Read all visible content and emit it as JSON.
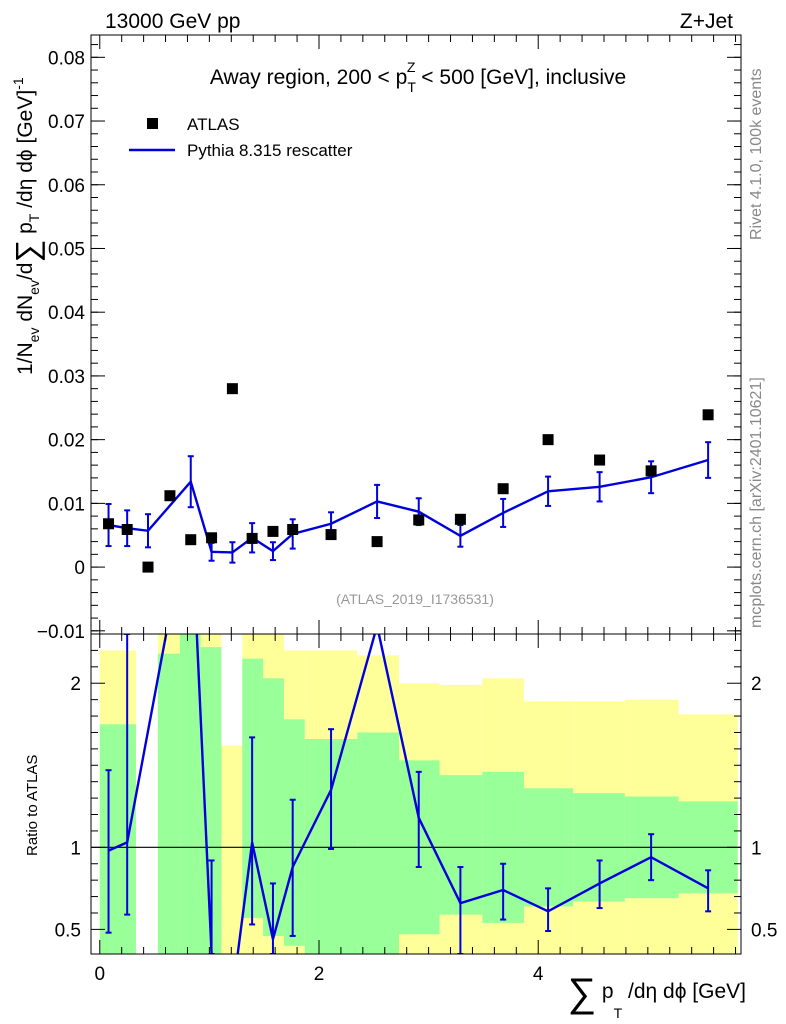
{
  "header": {
    "energy_label": "13000 GeV pp",
    "process_label": "Z+Jet",
    "side_label_top": "Rivet 4.1.0,  100k events",
    "side_label_bottom": "mcplots.cern.ch [arXiv:2401.10621]",
    "analysis_id": "(ATLAS_2019_I1736531)"
  },
  "colors": {
    "mc_line": "#0000dd",
    "data_marker": "#000000",
    "band_1sigma": "#99ff99",
    "band_2sigma": "#ffff99",
    "analysis_text": "#999999",
    "side_text": "#888888"
  },
  "chart_data": [
    {
      "type": "scatter",
      "title_pre": "Away region, 200 < p",
      "title_sub": "T",
      "title_sup": "Z",
      "title_post": " < 500 [GeV], inclusive",
      "ylabel": "1/N_ev dN_ev/d∑ p_T /dη dϕ [GeV]^-1",
      "xlim": [
        -0.08,
        5.85
      ],
      "ylim": [
        -0.0105,
        0.0835
      ],
      "yticks": [
        {
          "v": -0.01,
          "label": "−0.01"
        },
        {
          "v": 0,
          "label": "0"
        },
        {
          "v": 0.01,
          "label": "0.01"
        },
        {
          "v": 0.02,
          "label": "0.02"
        },
        {
          "v": 0.03,
          "label": "0.03"
        },
        {
          "v": 0.04,
          "label": "0.04"
        },
        {
          "v": 0.05,
          "label": "0.05"
        },
        {
          "v": 0.06,
          "label": "0.06"
        },
        {
          "v": 0.07,
          "label": "0.07"
        },
        {
          "v": 0.08,
          "label": "0.08"
        }
      ],
      "legend": {
        "data_label": "ATLAS",
        "mc_label": "Pythia 8.315 rescatter",
        "position": "top-left"
      },
      "atlas": {
        "x": [
          0.08,
          0.25,
          0.44,
          0.64,
          0.83,
          1.02,
          1.21,
          1.39,
          1.58,
          1.76,
          2.11,
          2.53,
          2.91,
          3.29,
          3.68,
          4.09,
          4.56,
          5.03,
          5.55
        ],
        "y": [
          0.0068,
          0.0059,
          0.0,
          0.0112,
          0.0043,
          0.0046,
          0.028,
          0.0045,
          0.0056,
          0.0059,
          0.0051,
          0.004,
          0.0074,
          0.0075,
          0.0123,
          0.02,
          0.0168,
          0.0151,
          0.0239
        ]
      },
      "pythia": {
        "x": [
          0.08,
          0.25,
          0.44,
          0.83,
          1.02,
          1.21,
          1.39,
          1.58,
          1.76,
          2.11,
          2.53,
          2.91,
          3.29,
          3.68,
          4.09,
          4.56,
          5.03,
          5.55
        ],
        "y": [
          0.0066,
          0.0061,
          0.0057,
          0.0134,
          0.0024,
          0.0023,
          0.0046,
          0.0025,
          0.0052,
          0.0068,
          0.0103,
          0.0087,
          0.0049,
          0.0085,
          0.0119,
          0.0126,
          0.0141,
          0.0168
        ],
        "yerr": [
          0.0033,
          0.0028,
          0.0026,
          0.004,
          0.0014,
          0.0016,
          0.0023,
          0.0014,
          0.0023,
          0.0018,
          0.0026,
          0.0021,
          0.0017,
          0.0022,
          0.0023,
          0.0023,
          0.0025,
          0.0028
        ]
      }
    },
    {
      "type": "line",
      "ylabel": "Ratio to ATLAS",
      "xlabel": "∑ p_T /dη dϕ [GeV]",
      "xlim": [
        -0.08,
        5.85
      ],
      "ylim": [
        0.35,
        2.3
      ],
      "yticks": [
        {
          "v": 0.5,
          "label": "0.5"
        },
        {
          "v": 1,
          "label": "1"
        },
        {
          "v": 2,
          "label": "2"
        }
      ],
      "xticks": [
        {
          "v": 0,
          "label": "0"
        },
        {
          "v": 2,
          "label": "2"
        },
        {
          "v": 4,
          "label": "4"
        }
      ],
      "bands": [
        {
          "x0": 0.0,
          "x1": 0.33,
          "g_lo": 0.35,
          "g_hi": 1.75,
          "y_lo": 0.35,
          "y_hi": 2.2
        },
        {
          "x0": 0.53,
          "x1": 0.73,
          "g_lo": 0.35,
          "g_hi": 2.18,
          "y_lo": 0.35,
          "y_hi": 2.3
        },
        {
          "x0": 0.73,
          "x1": 0.92,
          "g_lo": 0.35,
          "g_hi": 2.3,
          "y_lo": 0.35,
          "y_hi": 2.3
        },
        {
          "x0": 0.92,
          "x1": 1.11,
          "g_lo": 0.35,
          "g_hi": 2.22,
          "y_lo": 0.35,
          "y_hi": 2.3
        },
        {
          "x0": 1.11,
          "x1": 1.3,
          "g_lo": 0.35,
          "g_hi": 0.35,
          "y_lo": 0.35,
          "y_hi": 1.62
        },
        {
          "x0": 1.3,
          "x1": 1.49,
          "g_lo": 0.57,
          "g_hi": 2.15,
          "y_lo": 0.35,
          "y_hi": 2.3
        },
        {
          "x0": 1.49,
          "x1": 1.68,
          "g_lo": 0.46,
          "g_hi": 2.03,
          "y_lo": 0.35,
          "y_hi": 2.3
        },
        {
          "x0": 1.68,
          "x1": 1.87,
          "g_lo": 0.4,
          "g_hi": 1.78,
          "y_lo": 0.35,
          "y_hi": 2.2
        },
        {
          "x0": 1.87,
          "x1": 2.35,
          "g_lo": 0.35,
          "g_hi": 1.66,
          "y_lo": 0.35,
          "y_hi": 2.2
        },
        {
          "x0": 2.35,
          "x1": 2.73,
          "g_lo": 0.35,
          "g_hi": 1.7,
          "y_lo": 0.35,
          "y_hi": 2.17
        },
        {
          "x0": 2.73,
          "x1": 3.1,
          "g_lo": 0.47,
          "g_hi": 1.53,
          "y_lo": 0.35,
          "y_hi": 2.0
        },
        {
          "x0": 3.1,
          "x1": 3.49,
          "g_lo": 0.59,
          "g_hi": 1.44,
          "y_lo": 0.35,
          "y_hi": 1.99
        },
        {
          "x0": 3.49,
          "x1": 3.87,
          "g_lo": 0.54,
          "g_hi": 1.46,
          "y_lo": 0.35,
          "y_hi": 2.03
        },
        {
          "x0": 3.87,
          "x1": 4.32,
          "g_lo": 0.64,
          "g_hi": 1.36,
          "y_lo": 0.35,
          "y_hi": 1.89
        },
        {
          "x0": 4.32,
          "x1": 4.79,
          "g_lo": 0.67,
          "g_hi": 1.33,
          "y_lo": 0.35,
          "y_hi": 1.89
        },
        {
          "x0": 4.79,
          "x1": 5.28,
          "g_lo": 0.69,
          "g_hi": 1.31,
          "y_lo": 0.35,
          "y_hi": 1.9
        },
        {
          "x0": 5.28,
          "x1": 5.82,
          "g_lo": 0.72,
          "g_hi": 1.28,
          "y_lo": 0.35,
          "y_hi": 1.81
        }
      ],
      "ratio": {
        "x": [
          0.08,
          0.25,
          0.83,
          1.02,
          1.21,
          1.39,
          1.58,
          1.76,
          2.11,
          2.53,
          2.91,
          3.29,
          3.68,
          4.09,
          4.56,
          5.03,
          5.55
        ],
        "y": [
          0.98,
          1.03,
          3.1,
          0.35,
          0.1,
          1.03,
          0.44,
          0.88,
          1.35,
          2.35,
          1.18,
          0.66,
          0.74,
          0.61,
          0.78,
          0.94,
          0.75
        ],
        "err": [
          {
            "x": 0.08,
            "lo": 0.48,
            "hi": 1.47
          },
          {
            "x": 0.25,
            "lo": 0.59,
            "hi": 2.3
          },
          {
            "x": 1.02,
            "lo": 0.35,
            "hi": 0.92
          },
          {
            "x": 1.39,
            "lo": 0.53,
            "hi": 1.67
          },
          {
            "x": 1.58,
            "lo": 0.35,
            "hi": 0.78
          },
          {
            "x": 1.76,
            "lo": 0.46,
            "hi": 1.29
          },
          {
            "x": 2.11,
            "lo": 0.99,
            "hi": 1.72
          },
          {
            "x": 2.91,
            "lo": 0.88,
            "hi": 1.46
          },
          {
            "x": 3.29,
            "lo": 0.35,
            "hi": 0.88
          },
          {
            "x": 3.68,
            "lo": 0.56,
            "hi": 0.9
          },
          {
            "x": 4.09,
            "lo": 0.49,
            "hi": 0.75
          },
          {
            "x": 4.56,
            "lo": 0.63,
            "hi": 0.92
          },
          {
            "x": 5.03,
            "lo": 0.8,
            "hi": 1.08
          },
          {
            "x": 5.55,
            "lo": 0.61,
            "hi": 0.86
          }
        ]
      }
    }
  ]
}
